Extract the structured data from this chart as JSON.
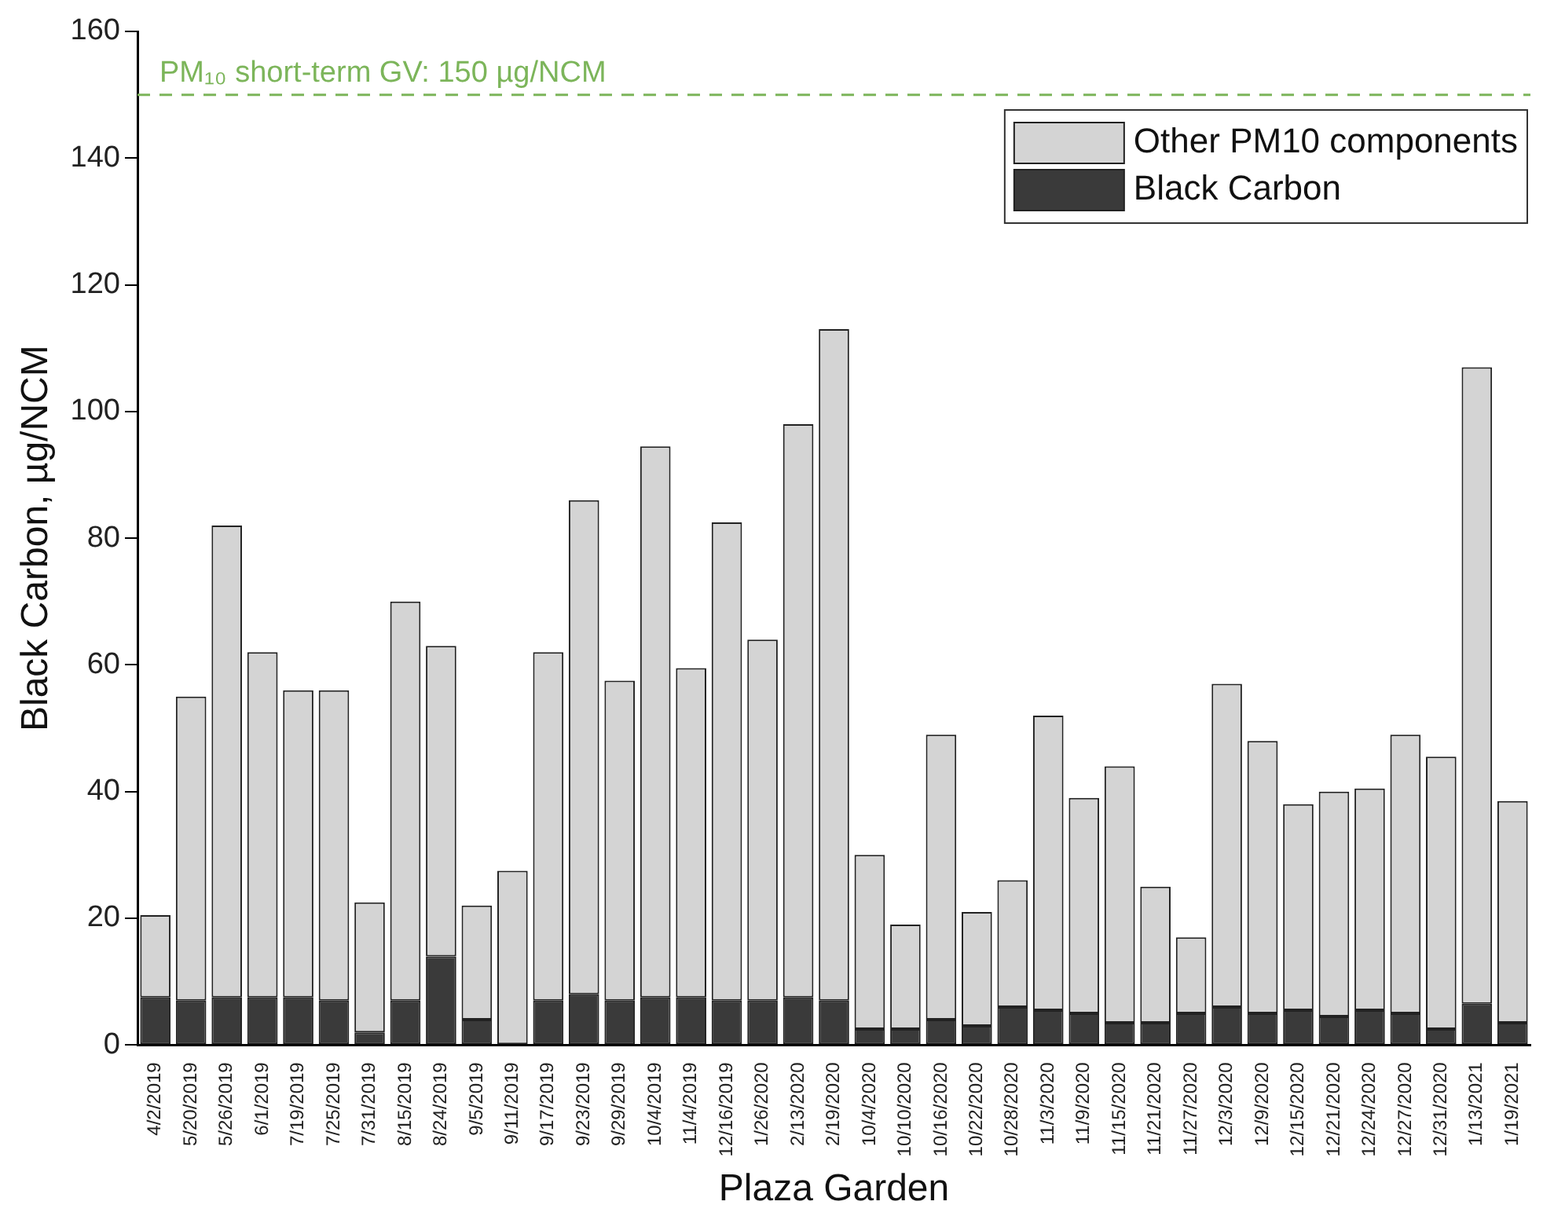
{
  "chart_data": {
    "type": "bar",
    "stacked": true,
    "xlabel": "Plaza Garden",
    "ylabel": "Black Carbon, µg/NCM",
    "categories": [
      "4/2/2019",
      "5/20/2019",
      "5/26/2019",
      "6/1/2019",
      "7/19/2019",
      "7/25/2019",
      "7/31/2019",
      "8/15/2019",
      "8/24/2019",
      "9/5/2019",
      "9/11/2019",
      "9/17/2019",
      "9/23/2019",
      "9/29/2019",
      "10/4/2019",
      "11/4/2019",
      "12/16/2019",
      "1/26/2020",
      "2/13/2020",
      "2/19/2020",
      "10/4/2020",
      "10/10/2020",
      "10/16/2020",
      "10/22/2020",
      "10/28/2020",
      "11/3/2020",
      "11/9/2020",
      "11/15/2020",
      "11/21/2020",
      "11/27/2020",
      "12/3/2020",
      "12/9/2020",
      "12/15/2020",
      "12/21/2020",
      "12/24/2020",
      "12/27/2020",
      "12/31/2020",
      "1/13/2021",
      "1/19/2021"
    ],
    "series": [
      {
        "name": "Black Carbon",
        "color": "#3a3a3a",
        "values": [
          7.5,
          7,
          7.5,
          7.5,
          7.5,
          7,
          2,
          7,
          14,
          4,
          0,
          7,
          8,
          7,
          7.5,
          7.5,
          7,
          7,
          7.5,
          7,
          2.5,
          2.5,
          4,
          3,
          6,
          5.5,
          5,
          3.5,
          3.5,
          5,
          6,
          5,
          5.5,
          4.5,
          5.5,
          5,
          2.5,
          6.5,
          3.5
        ]
      },
      {
        "name": "Other PM10 components",
        "color": "#d4d4d4",
        "values": [
          13,
          48,
          74.5,
          54.5,
          48.5,
          49,
          20.5,
          63,
          49,
          18,
          27.5,
          55,
          78,
          50.5,
          87,
          52,
          75.5,
          57,
          90.5,
          106,
          27.5,
          16.5,
          45,
          18,
          20,
          46.5,
          34,
          40.5,
          21.5,
          12,
          51,
          43,
          32.5,
          35.5,
          35,
          44,
          43,
          100.5,
          35
        ]
      }
    ],
    "ylim": [
      0,
      160
    ],
    "yticks": [
      0,
      20,
      40,
      60,
      80,
      100,
      120,
      140,
      160
    ],
    "grid": false,
    "legend": "top right",
    "ref_lines": [
      {
        "axis": "y",
        "value": 150,
        "label": "PM₁₀ short-term GV: 150 µg/NCM",
        "color": "#7cb55a",
        "line_style": "dashed"
      }
    ]
  }
}
